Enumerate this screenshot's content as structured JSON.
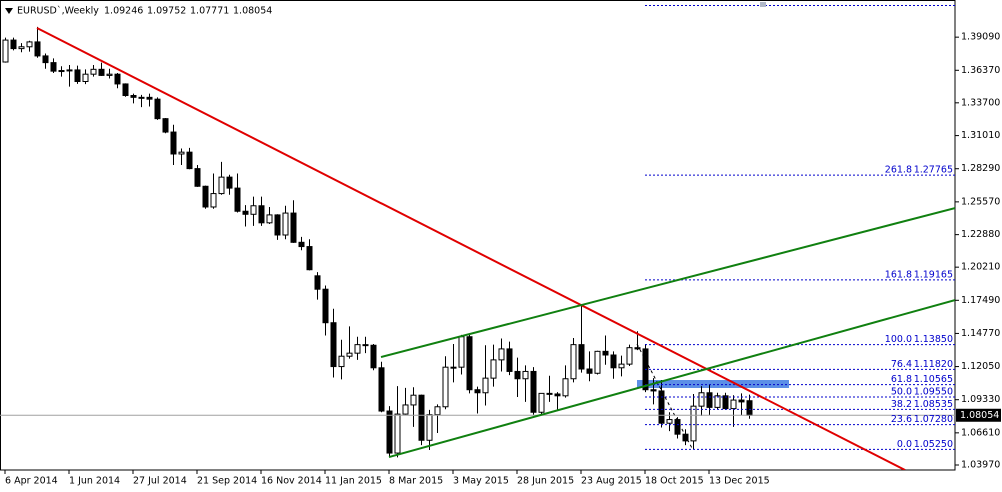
{
  "chart_data": {
    "type": "candlestick",
    "title": "EURUSD`,Weekly",
    "categories": [
      "6 Apr 2014",
      null,
      null,
      null,
      null,
      null,
      null,
      null,
      "1 Jun 2014",
      null,
      null,
      null,
      null,
      null,
      null,
      null,
      "27 Jul 2014",
      null,
      null,
      null,
      null,
      null,
      null,
      null,
      "21 Sep 2014",
      null,
      null,
      null,
      null,
      null,
      null,
      null,
      "16 Nov 2014",
      null,
      null,
      null,
      null,
      null,
      null,
      null,
      "11 Jan 2015",
      null,
      null,
      null,
      null,
      null,
      null,
      null,
      "8 Mar 2015",
      null,
      null,
      null,
      null,
      null,
      null,
      null,
      "3 May 2015",
      null,
      null,
      null,
      null,
      null,
      null,
      null,
      "28 Jun 2015",
      null,
      null,
      null,
      null,
      null,
      null,
      null,
      "23 Aug 2015",
      null,
      null,
      null,
      null,
      null,
      null,
      null,
      "18 Oct 2015",
      null,
      null,
      null,
      null,
      null,
      null,
      null,
      "13 Dec 2015",
      null,
      null,
      null,
      null,
      null
    ],
    "open": [
      1.3705,
      1.3885,
      1.3815,
      1.383,
      1.387,
      1.3755,
      1.37,
      1.363,
      1.3635,
      1.364,
      1.3545,
      1.3605,
      1.3645,
      1.3595,
      1.3605,
      1.3525,
      1.343,
      1.3415,
      1.3415,
      1.34,
      1.324,
      1.313,
      1.295,
      1.2965,
      1.283,
      1.2685,
      1.2515,
      1.2625,
      1.276,
      1.267,
      1.248,
      1.2455,
      1.2525,
      1.2385,
      1.245,
      1.2285,
      1.2465,
      1.2225,
      1.219,
      1.195,
      1.184,
      1.1565,
      1.1205,
      1.129,
      1.1315,
      1.1385,
      1.138,
      1.1195,
      1.084,
      1.0495,
      1.0815,
      1.089,
      1.097,
      1.06,
      1.081,
      1.0875,
      1.12,
      1.12,
      1.145,
      1.1015,
      1.099,
      1.111,
      1.126,
      1.135,
      1.1165,
      1.1105,
      1.1165,
      1.083,
      1.0985,
      1.098,
      1.0965,
      1.1105,
      1.1385,
      1.1185,
      1.115,
      1.133,
      1.13,
      1.1195,
      1.1225,
      1.136,
      1.135,
      1.1015,
      1.1005,
      1.074,
      1.077,
      1.065,
      1.0595,
      1.088,
      1.099,
      1.087,
      1.0965,
      1.086,
      1.093,
      1.09246
    ],
    "high": [
      1.3905,
      1.3905,
      1.386,
      1.388,
      1.3993,
      1.3775,
      1.3735,
      1.367,
      1.368,
      1.3675,
      1.3645,
      1.368,
      1.37,
      1.365,
      1.3615,
      1.353,
      1.3445,
      1.3435,
      1.3445,
      1.3415,
      1.3245,
      1.319,
      1.2995,
      1.3,
      1.286,
      1.269,
      1.279,
      1.2885,
      1.278,
      1.279,
      1.253,
      1.26,
      1.26,
      1.2515,
      1.2455,
      1.2525,
      1.257,
      1.227,
      1.225,
      1.198,
      1.187,
      1.168,
      1.1425,
      1.1535,
      1.145,
      1.145,
      1.139,
      1.1245,
      1.088,
      1.1045,
      1.103,
      1.1035,
      1.0975,
      1.085,
      1.0895,
      1.129,
      1.139,
      1.1465,
      1.1465,
      1.104,
      1.138,
      1.1385,
      1.1435,
      1.141,
      1.1278,
      1.1215,
      1.12,
      1.0985,
      1.113,
      1.0995,
      1.1215,
      1.144,
      1.1715,
      1.133,
      1.1335,
      1.146,
      1.133,
      1.1295,
      1.1385,
      1.1495,
      1.139,
      1.111,
      1.1095,
      1.083,
      1.079,
      1.069,
      1.098,
      1.1045,
      1.106,
      1.099,
      1.099,
      1.097,
      1.0985,
      1.09752
    ],
    "low": [
      1.37,
      1.38,
      1.3785,
      1.379,
      1.374,
      1.365,
      1.3615,
      1.3585,
      1.3503,
      1.3525,
      1.3523,
      1.3585,
      1.359,
      1.357,
      1.349,
      1.342,
      1.3365,
      1.3335,
      1.334,
      1.323,
      1.312,
      1.286,
      1.286,
      1.2825,
      1.268,
      1.25,
      1.25,
      1.2615,
      1.2615,
      1.247,
      1.2355,
      1.236,
      1.236,
      1.2375,
      1.2245,
      1.225,
      1.222,
      1.216,
      1.1995,
      1.1755,
      1.146,
      1.1115,
      1.11,
      1.127,
      1.126,
      1.1315,
      1.1175,
      1.083,
      1.0462,
      1.046,
      1.081,
      1.071,
      1.056,
      1.052,
      1.066,
      1.0855,
      1.1075,
      1.114,
      1.0985,
      1.082,
      1.0885,
      1.104,
      1.1165,
      1.1135,
      1.0955,
      1.0915,
      1.081,
      1.081,
      1.0915,
      1.085,
      1.095,
      1.1075,
      1.1155,
      1.1085,
      1.114,
      1.122,
      1.1105,
      1.1125,
      1.121,
      1.134,
      1.0995,
      1.0895,
      1.0705,
      1.0675,
      1.0615,
      1.056,
      1.0525,
      1.08,
      1.0805,
      1.0855,
      1.085,
      1.071,
      1.0805,
      1.07771
    ],
    "close": [
      1.3885,
      1.3815,
      1.383,
      1.387,
      1.3755,
      1.37,
      1.363,
      1.3635,
      1.364,
      1.3545,
      1.3605,
      1.3645,
      1.3595,
      1.3605,
      1.3525,
      1.343,
      1.3415,
      1.3415,
      1.34,
      1.324,
      1.313,
      1.295,
      1.2965,
      1.283,
      1.2685,
      1.2515,
      1.2625,
      1.276,
      1.267,
      1.248,
      1.2455,
      1.2525,
      1.2385,
      1.245,
      1.2285,
      1.2465,
      1.2225,
      1.219,
      1.2,
      1.184,
      1.1565,
      1.1205,
      1.129,
      1.1315,
      1.1385,
      1.138,
      1.1195,
      1.084,
      1.0495,
      1.0815,
      1.089,
      1.097,
      1.06,
      1.081,
      1.0875,
      1.12,
      1.12,
      1.145,
      1.1015,
      1.099,
      1.111,
      1.126,
      1.135,
      1.1165,
      1.1105,
      1.1165,
      1.083,
      1.0985,
      1.098,
      1.0965,
      1.1105,
      1.1385,
      1.1185,
      1.115,
      1.133,
      1.13,
      1.1195,
      1.1225,
      1.136,
      1.135,
      1.1015,
      1.1005,
      1.074,
      1.077,
      1.065,
      1.0595,
      1.088,
      1.099,
      1.087,
      1.0965,
      1.086,
      1.093,
      1.0915,
      1.08054
    ],
    "close_label": "1.08054",
    "up_color": "#ffffff",
    "down_color": "#000000",
    "wick_color": "#000000",
    "ylim": [
      1.0356,
      1.4214
    ],
    "yticks": [
      {
        "value": 1.3909,
        "label": "1.39090"
      },
      {
        "value": 1.3637,
        "label": "1.36370"
      },
      {
        "value": 1.337,
        "label": "1.33700"
      },
      {
        "value": 1.3101,
        "label": "1.31010"
      },
      {
        "value": 1.2829,
        "label": "1.28290"
      },
      {
        "value": 1.2557,
        "label": "1.25570"
      },
      {
        "value": 1.2288,
        "label": "1.22880"
      },
      {
        "value": 1.2021,
        "label": "1.20210"
      },
      {
        "value": 1.1749,
        "label": "1.17490"
      },
      {
        "value": 1.1477,
        "label": "1.14770"
      },
      {
        "value": 1.1205,
        "label": "1.12050"
      },
      {
        "value": 1.0933,
        "label": "1.09330"
      },
      {
        "value": 1.0661,
        "label": "1.06610"
      },
      {
        "value": 1.0397,
        "label": "1.03970"
      }
    ],
    "grid": false,
    "fib_color": "#0000cc",
    "fib_levels": [
      {
        "level": "261.8",
        "value": 1.27765,
        "label": "1.27765"
      },
      {
        "level": "161.8",
        "value": 1.19165,
        "label": "1.19165"
      },
      {
        "level": "100.0",
        "value": 1.1385,
        "label": "1.13850"
      },
      {
        "level": "76.4",
        "value": 1.1182,
        "label": "1.11820"
      },
      {
        "level": "61.8",
        "value": 1.10565,
        "label": "1.10565"
      },
      {
        "level": "50.0",
        "value": 1.0955,
        "label": "1.09550"
      },
      {
        "level": "38.2",
        "value": 1.08535,
        "label": "1.08535"
      },
      {
        "level": "23.6",
        "value": 1.0728,
        "label": "1.07280"
      },
      {
        "level": "0.0",
        "value": 1.0525,
        "label": "1.05250"
      }
    ],
    "trendlines": [
      {
        "color": "#e00000",
        "x": [
          4,
          112.5
        ],
        "y": [
          1.3984,
          1.0356
        ]
      },
      {
        "color": "#108010",
        "x": [
          47,
          118.75
        ],
        "y": [
          1.1283,
          1.2506
        ]
      },
      {
        "color": "#108010",
        "x": [
          48,
          118.75
        ],
        "y": [
          1.0462,
          1.1751
        ]
      }
    ]
  }
}
